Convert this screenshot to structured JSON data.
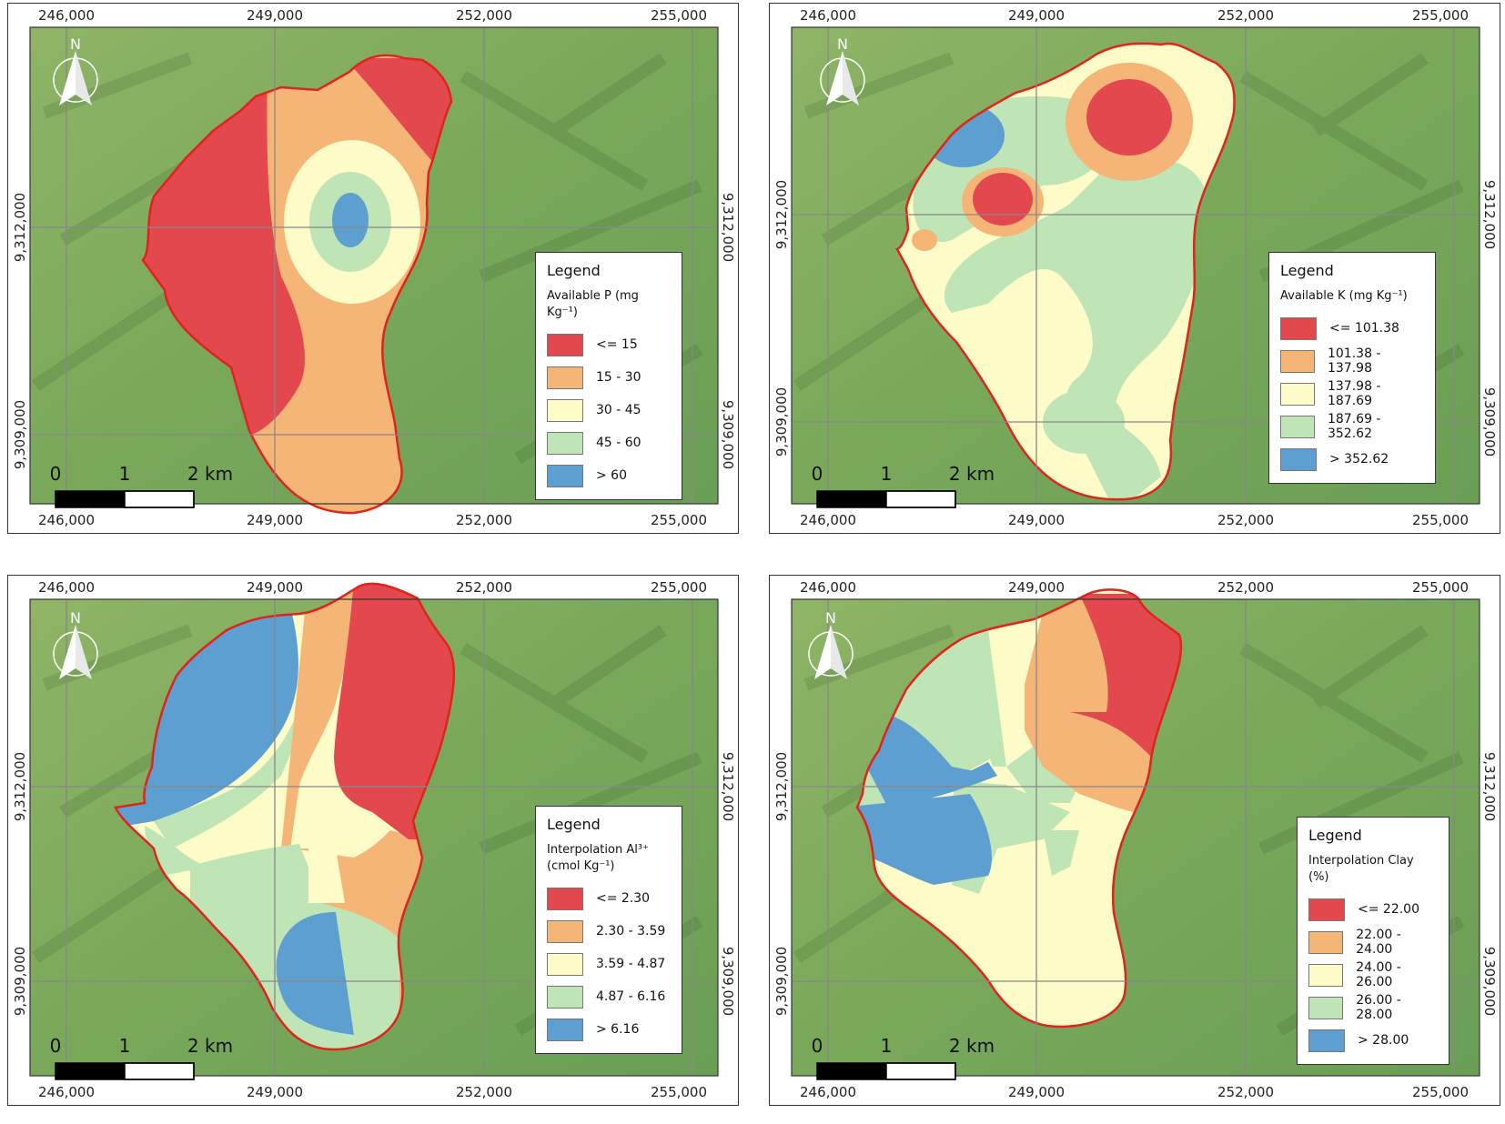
{
  "coordinates": {
    "x_ticks": [
      "246,000",
      "249,000",
      "252,000",
      "255,000"
    ],
    "y_ticks": [
      "9,312,000",
      "9,309,000"
    ]
  },
  "north_label": "N",
  "scale": {
    "ticks": [
      "0",
      "1",
      "2 km"
    ]
  },
  "boundary_color": "#e0231b",
  "panels": [
    {
      "legend_title": "Legend",
      "variable": "Available P (mg Kg⁻¹)",
      "classes": [
        {
          "label": "<= 15",
          "color": "#e2484d"
        },
        {
          "label": "15 - 30",
          "color": "#f4b576"
        },
        {
          "label": "30 - 45",
          "color": "#fdfbc8"
        },
        {
          "label": "45 - 60",
          "color": "#bfe5b7"
        },
        {
          "label": "> 60",
          "color": "#5d9fd0"
        }
      ]
    },
    {
      "legend_title": "Legend",
      "variable": "Available K (mg Kg⁻¹)",
      "classes": [
        {
          "label": "<= 101.38",
          "color": "#e2484d"
        },
        {
          "label": "101.38 - 137.98",
          "color": "#f4b576"
        },
        {
          "label": "137.98 - 187.69",
          "color": "#fdfbc8"
        },
        {
          "label": "187.69 - 352.62",
          "color": "#bfe5b7"
        },
        {
          "label": "> 352.62",
          "color": "#5d9fd0"
        }
      ]
    },
    {
      "legend_title": "Legend",
      "variable": "Interpolation Al³⁺ (cmol Kg⁻¹)",
      "classes": [
        {
          "label": "<= 2.30",
          "color": "#e2484d"
        },
        {
          "label": "2.30 - 3.59",
          "color": "#f4b576"
        },
        {
          "label": "3.59 - 4.87",
          "color": "#fdfbc8"
        },
        {
          "label": "4.87 - 6.16",
          "color": "#bfe5b7"
        },
        {
          "label": "> 6.16",
          "color": "#5d9fd0"
        }
      ]
    },
    {
      "legend_title": "Legend",
      "variable": "Interpolation Clay (%)",
      "classes": [
        {
          "label": "<= 22.00",
          "color": "#e2484d"
        },
        {
          "label": "22.00 - 24.00",
          "color": "#f4b576"
        },
        {
          "label": "24.00 - 26.00",
          "color": "#fdfbc8"
        },
        {
          "label": "26.00 - 28.00",
          "color": "#bfe5b7"
        },
        {
          "label": "> 28.00",
          "color": "#5d9fd0"
        }
      ]
    }
  ]
}
